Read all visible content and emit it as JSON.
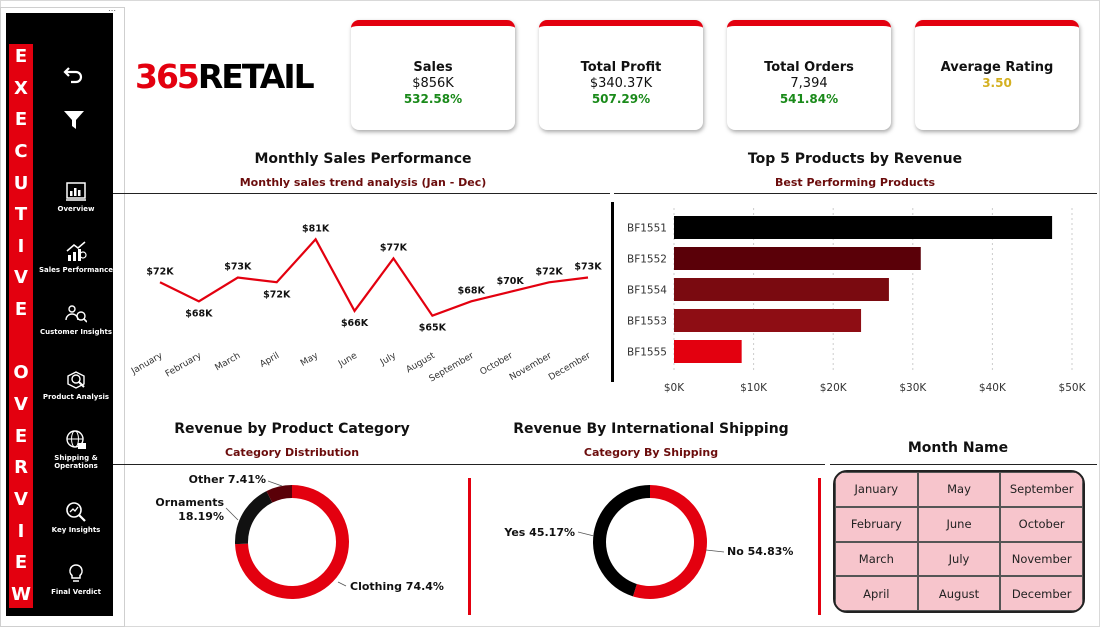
{
  "sidebar": {
    "title_letters": [
      "E",
      "X",
      "E",
      "C",
      "U",
      "T",
      "I",
      "V",
      "E",
      " ",
      "O",
      "V",
      "E",
      "R",
      "V",
      "I",
      "E",
      "W"
    ],
    "menu_dots": "⋯",
    "items": [
      {
        "label": "Overview",
        "icon": "bar-chart-icon"
      },
      {
        "label": "Sales Performance",
        "icon": "growth-chart-icon"
      },
      {
        "label": "Customer Insights",
        "icon": "customers-icon"
      },
      {
        "label": "Product Analysis",
        "icon": "product-search-icon"
      },
      {
        "label": "Shipping &",
        "label2": "Operations",
        "icon": "globe-shipping-icon"
      },
      {
        "label": "Key Insights",
        "icon": "magnifier-chart-icon"
      },
      {
        "label": "Final Verdict",
        "icon": "lightbulb-icon"
      }
    ]
  },
  "logo": {
    "number": "365",
    "word": "RETAIL"
  },
  "kpis": [
    {
      "title": "Sales",
      "value": "$856K",
      "change": "532.58%"
    },
    {
      "title": "Total Profit",
      "value": "$340.37K",
      "change": "507.29%"
    },
    {
      "title": "Total Orders",
      "value": "7,394",
      "change": "541.84%"
    },
    {
      "title": "Average Rating",
      "value": "",
      "change": "3.50"
    }
  ],
  "monthly_sales": {
    "title": "Monthly Sales Performance",
    "subtitle": "Monthly sales trend analysis (Jan - Dec)"
  },
  "top_products": {
    "title": "Top 5 Products by Revenue",
    "subtitle": "Best Performing Products"
  },
  "category": {
    "title": "Revenue by Product Category",
    "subtitle": "Category Distribution"
  },
  "shipping": {
    "title": "Revenue By International Shipping",
    "subtitle": "Category By Shipping"
  },
  "month_slicer": {
    "title": "Month Name",
    "months": [
      "January",
      "May",
      "September",
      "February",
      "June",
      "October",
      "March",
      "July",
      "November",
      "April",
      "August",
      "December"
    ]
  },
  "colors": {
    "accent": "#e3000f",
    "dark": "#000000",
    "positive": "#1a8a1a",
    "rating": "#d4b021",
    "slicer_bg": "#f7c5cc"
  },
  "chart_data": [
    {
      "type": "line",
      "categories": [
        "January",
        "February",
        "March",
        "April",
        "May",
        "June",
        "July",
        "August",
        "September",
        "October",
        "November",
        "December"
      ],
      "values": [
        72,
        68,
        73,
        72,
        81,
        66,
        77,
        65,
        68,
        70,
        72,
        73
      ],
      "labels": [
        "$72K",
        "$68K",
        "$73K",
        "$72K",
        "$81K",
        "$66K",
        "$77K",
        "$65K",
        "$68K",
        "$70K",
        "$72K",
        "$73K"
      ],
      "ylim": [
        62,
        84
      ],
      "color": "#e3000f"
    },
    {
      "type": "bar",
      "orientation": "horizontal",
      "categories": [
        "BF1551",
        "BF1552",
        "BF1554",
        "BF1553",
        "BF1555"
      ],
      "values": [
        47500,
        31000,
        27000,
        23500,
        8500
      ],
      "colors": [
        "#000000",
        "#5a0008",
        "#7a0a10",
        "#8e0d14",
        "#e3000f"
      ],
      "xlim": [
        0,
        50000
      ],
      "xticks": [
        "$0K",
        "$10K",
        "$20K",
        "$30K",
        "$40K",
        "$50K"
      ],
      "grid": true
    },
    {
      "type": "pie",
      "donut": true,
      "labels": [
        "Clothing",
        "Ornaments",
        "Other"
      ],
      "values": [
        74.4,
        18.19,
        7.41
      ],
      "display": [
        "Clothing 74.4%",
        "Ornaments",
        "18.19%",
        "Other 7.41%"
      ],
      "colors": [
        "#e3000f",
        "#111111",
        "#5a0008"
      ]
    },
    {
      "type": "pie",
      "donut": true,
      "labels": [
        "No",
        "Yes"
      ],
      "values": [
        54.83,
        45.17
      ],
      "display": [
        "No 54.83%",
        "Yes 45.17%"
      ],
      "colors": [
        "#e3000f",
        "#000000"
      ]
    }
  ]
}
